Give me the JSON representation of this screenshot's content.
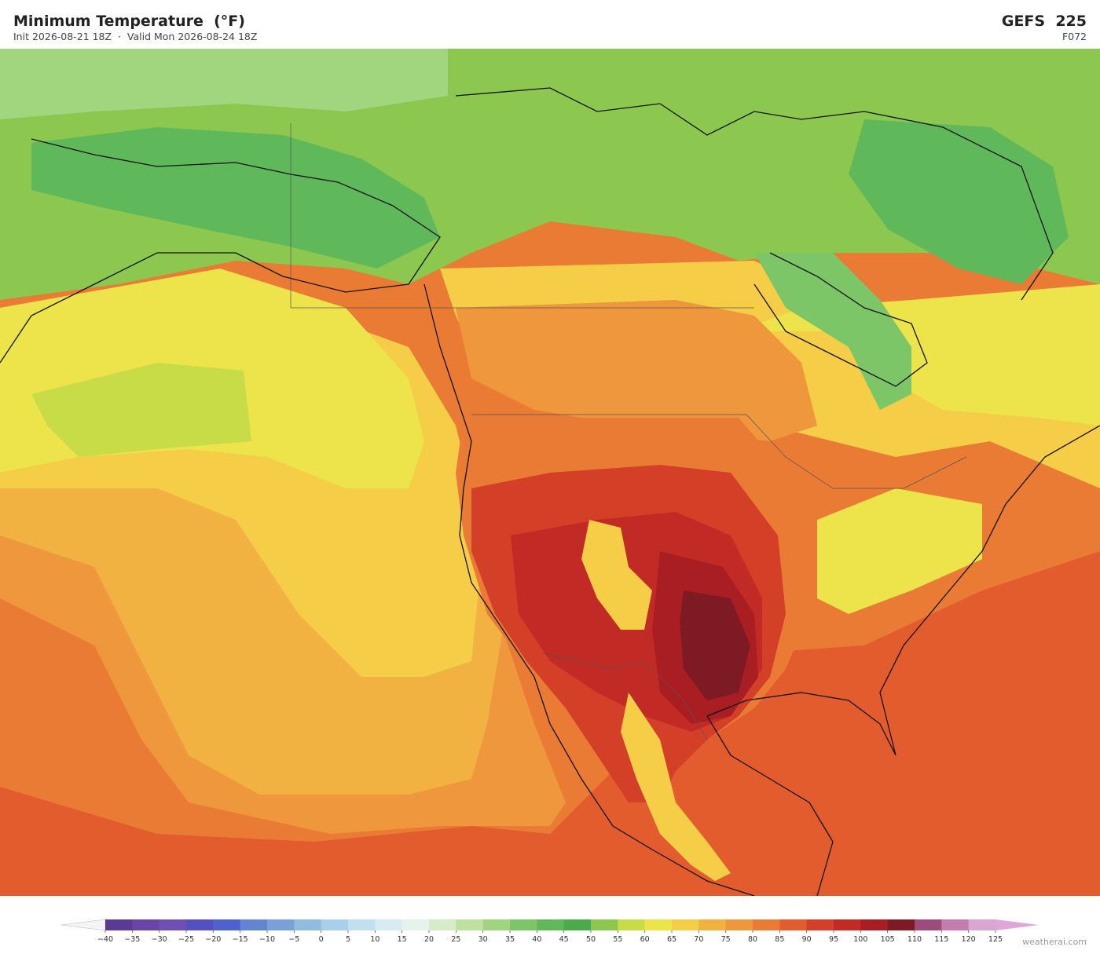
{
  "header": {
    "title": "Minimum Temperature  (°F)",
    "subtitle": "Init 2026-08-21 18Z  ·  Valid Mon 2026-08-24 18Z",
    "model": "GEFS  225",
    "forecast_hour": "F072"
  },
  "map": {
    "colorbar": {
      "ticks": [
        {
          "value": -40,
          "label": "−40"
        },
        {
          "value": -35,
          "label": "−35"
        },
        {
          "value": -30,
          "label": "−30"
        },
        {
          "value": -25,
          "label": "−25"
        },
        {
          "value": -20,
          "label": "−20"
        },
        {
          "value": -15,
          "label": "−15"
        },
        {
          "value": -10,
          "label": "−10"
        },
        {
          "value": -5,
          "label": "−5"
        },
        0,
        5,
        10,
        15,
        20,
        25,
        30,
        35,
        40,
        45,
        50,
        55,
        60,
        65,
        70,
        75,
        80,
        85,
        90,
        95,
        100,
        105,
        110,
        115,
        120,
        125
      ],
      "colors": [
        "#5b3a96",
        "#6a44a6",
        "#6e4fb4",
        "#5550c2",
        "#4d62cc",
        "#6384d3",
        "#79a0d8",
        "#92bbe0",
        "#a8d0ea",
        "#c0e0ef",
        "#d7ecf2",
        "#e6f3ea",
        "#d6ecc8",
        "#bde1a0",
        "#9fd57f",
        "#7cc668",
        "#5fb85a",
        "#4aab4c",
        "#8cc84f",
        "#c8dc48",
        "#ece44a",
        "#f5cd47",
        "#f2b242",
        "#ef973c",
        "#ea7b35",
        "#e25c2d",
        "#d43f28",
        "#c12a25",
        "#a81e22",
        "#7e1a24",
        "#9d4a7c",
        "#c47bae",
        "#d9a5d2"
      ],
      "under_color": "#f4f4f8",
      "over_color": "#dda8d6"
    }
  },
  "credit": "weatherai.com"
}
